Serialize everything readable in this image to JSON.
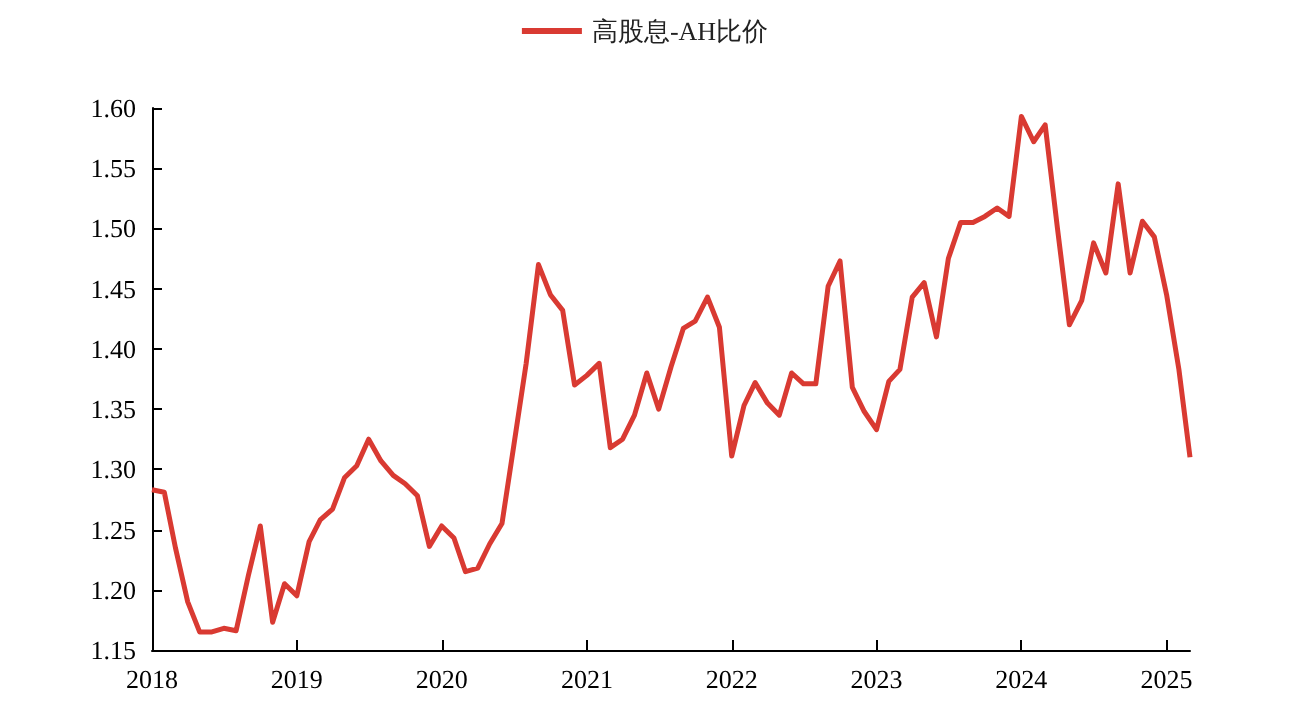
{
  "chart_data": {
    "type": "line",
    "legend": "top",
    "grid": false,
    "marker": "none",
    "line_style": "solid",
    "x": [
      "2018-01",
      "2018-02",
      "2018-03",
      "2018-04",
      "2018-05",
      "2018-06",
      "2018-07",
      "2018-08",
      "2018-09",
      "2018-10",
      "2018-11",
      "2018-12",
      "2019-01",
      "2019-02",
      "2019-03",
      "2019-04",
      "2019-05",
      "2019-06",
      "2019-07",
      "2019-08",
      "2019-09",
      "2019-10",
      "2019-11",
      "2019-12",
      "2020-01",
      "2020-02",
      "2020-03",
      "2020-04",
      "2020-05",
      "2020-06",
      "2020-07",
      "2020-08",
      "2020-09",
      "2020-10",
      "2020-11",
      "2020-12",
      "2021-01",
      "2021-02",
      "2021-03",
      "2021-04",
      "2021-05",
      "2021-06",
      "2021-07",
      "2021-08",
      "2021-09",
      "2021-10",
      "2021-11",
      "2021-12",
      "2022-01",
      "2022-02",
      "2022-03",
      "2022-04",
      "2022-05",
      "2022-06",
      "2022-07",
      "2022-08",
      "2022-09",
      "2022-10",
      "2022-11",
      "2022-12",
      "2023-01",
      "2023-02",
      "2023-03",
      "2023-04",
      "2023-05",
      "2023-06",
      "2023-07",
      "2023-08",
      "2023-09",
      "2023-10",
      "2023-11",
      "2023-12",
      "2024-01",
      "2024-02",
      "2024-03",
      "2024-04",
      "2024-05",
      "2024-06",
      "2024-07",
      "2024-08",
      "2024-09",
      "2024-10",
      "2024-11",
      "2024-12",
      "2025-01",
      "2025-02",
      "2025-03"
    ],
    "series": [
      {
        "name": "高股息-AH比价",
        "color": "#d93a32",
        "values": [
          1.283,
          1.281,
          1.235,
          1.19,
          1.165,
          1.165,
          1.168,
          1.166,
          1.212,
          1.253,
          1.173,
          1.205,
          1.195,
          1.24,
          1.258,
          1.267,
          1.293,
          1.303,
          1.325,
          1.307,
          1.295,
          1.288,
          1.278,
          1.236,
          1.253,
          1.243,
          1.215,
          1.218,
          1.238,
          1.255,
          1.32,
          1.388,
          1.47,
          1.445,
          1.432,
          1.37,
          1.378,
          1.388,
          1.318,
          1.325,
          1.345,
          1.38,
          1.35,
          1.385,
          1.417,
          1.423,
          1.443,
          1.418,
          1.311,
          1.353,
          1.372,
          1.355,
          1.345,
          1.38,
          1.371,
          1.371,
          1.452,
          1.473,
          1.368,
          1.348,
          1.333,
          1.373,
          1.383,
          1.443,
          1.455,
          1.41,
          1.475,
          1.505,
          1.505,
          1.51,
          1.517,
          1.51,
          1.593,
          1.572,
          1.586,
          1.5,
          1.42,
          1.44,
          1.488,
          1.463,
          1.537,
          1.463,
          1.506,
          1.493,
          1.445,
          1.383,
          1.31
        ]
      }
    ],
    "xlim": [
      "2018-01",
      "2025-03"
    ],
    "xticks": [
      "2018",
      "2019",
      "2020",
      "2021",
      "2022",
      "2023",
      "2024",
      "2025"
    ],
    "ylim": [
      1.15,
      1.6
    ],
    "yticks": [
      1.15,
      {
        "value": 1.2,
        "label": "1.20"
      },
      1.25,
      {
        "value": 1.3,
        "label": "1.30"
      },
      1.35,
      {
        "value": 1.4,
        "label": "1.40"
      },
      1.45,
      {
        "value": 1.5,
        "label": "1.50"
      },
      1.55,
      {
        "value": 1.6,
        "label": "1.60"
      }
    ]
  }
}
